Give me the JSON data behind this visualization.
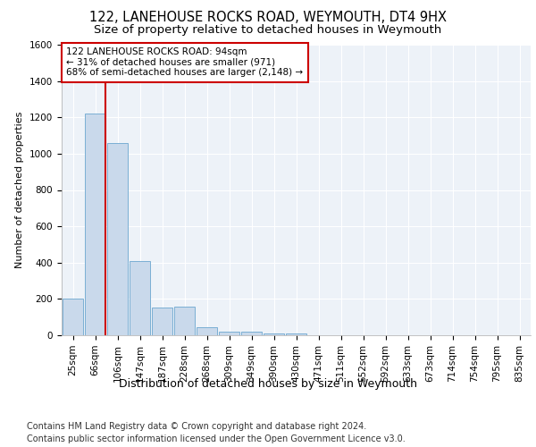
{
  "title1": "122, LANEHOUSE ROCKS ROAD, WEYMOUTH, DT4 9HX",
  "title2": "Size of property relative to detached houses in Weymouth",
  "xlabel": "Distribution of detached houses by size in Weymouth",
  "ylabel": "Number of detached properties",
  "categories": [
    "25sqm",
    "66sqm",
    "106sqm",
    "147sqm",
    "187sqm",
    "228sqm",
    "268sqm",
    "309sqm",
    "349sqm",
    "390sqm",
    "430sqm",
    "471sqm",
    "511sqm",
    "552sqm",
    "592sqm",
    "633sqm",
    "673sqm",
    "714sqm",
    "754sqm",
    "795sqm",
    "835sqm"
  ],
  "values": [
    200,
    1220,
    1060,
    410,
    155,
    160,
    45,
    20,
    20,
    10,
    10,
    0,
    0,
    0,
    0,
    0,
    0,
    0,
    0,
    0,
    0
  ],
  "bar_color": "#c9d9eb",
  "bar_edgecolor": "#7bafd4",
  "vline_bar_index": 1,
  "vline_color": "#cc0000",
  "annotation_text": "122 LANEHOUSE ROCKS ROAD: 94sqm\n← 31% of detached houses are smaller (971)\n68% of semi-detached houses are larger (2,148) →",
  "annotation_box_edgecolor": "#cc0000",
  "footer1": "Contains HM Land Registry data © Crown copyright and database right 2024.",
  "footer2": "Contains public sector information licensed under the Open Government Licence v3.0.",
  "ylim": [
    0,
    1600
  ],
  "yticks": [
    0,
    200,
    400,
    600,
    800,
    1000,
    1200,
    1400,
    1600
  ],
  "background_color": "#edf2f8",
  "grid_color": "#ffffff",
  "title1_fontsize": 10.5,
  "title2_fontsize": 9.5,
  "xlabel_fontsize": 9,
  "ylabel_fontsize": 8,
  "tick_fontsize": 7.5,
  "annotation_fontsize": 7.5,
  "footer_fontsize": 7
}
